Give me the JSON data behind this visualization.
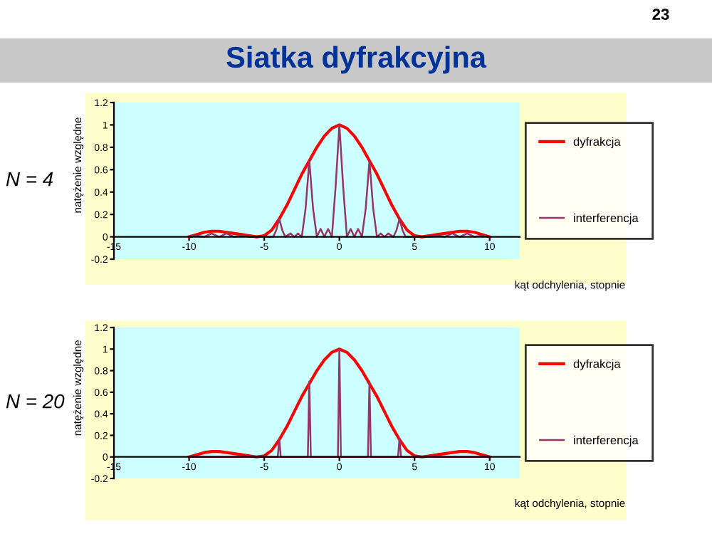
{
  "chart_data": [
    {
      "type": "line",
      "title": "Siatka dyfrakcyjna",
      "annotations": [
        "N = 4",
        "23"
      ],
      "xlabel": "kąt odchylenia, stopnie",
      "ylabel": "natężenie względne",
      "xlim": [
        -15,
        12
      ],
      "ylim": [
        -0.2,
        1.2
      ],
      "xticks": [
        -15,
        -10,
        -5,
        0,
        5,
        10
      ],
      "yticks": [
        -0.2,
        0,
        0.2,
        0.4,
        0.6,
        0.8,
        1,
        1.2
      ],
      "legend": "right",
      "marker": "none",
      "line_style": "solid",
      "series": [
        {
          "name": "dyfrakcja",
          "color": "#ff0000",
          "x": [
            -10,
            -9.5,
            -9,
            -8.5,
            -8,
            -7.5,
            -7,
            -6.5,
            -6,
            -5.5,
            -5,
            -4.5,
            -4,
            -3.5,
            -3,
            -2.5,
            -2,
            -1.5,
            -1,
            -0.5,
            0,
            0.5,
            1,
            1.5,
            2,
            2.5,
            3,
            3.5,
            4,
            4.5,
            5,
            5.5,
            6,
            6.5,
            7,
            7.5,
            8,
            8.5,
            9,
            9.5,
            10
          ],
          "values": [
            0,
            0.02,
            0.04,
            0.05,
            0.05,
            0.04,
            0.03,
            0.02,
            0.01,
            0,
            0.01,
            0.06,
            0.16,
            0.28,
            0.42,
            0.56,
            0.68,
            0.8,
            0.9,
            0.97,
            1,
            0.97,
            0.9,
            0.8,
            0.68,
            0.56,
            0.42,
            0.28,
            0.16,
            0.06,
            0.01,
            0,
            0.01,
            0.02,
            0.03,
            0.04,
            0.05,
            0.05,
            0.04,
            0.02,
            0
          ]
        },
        {
          "name": "interferencja",
          "color": "#993366",
          "x": [
            -10,
            -9.5,
            -9,
            -8.5,
            -8,
            -7.5,
            -7,
            -6.5,
            -6,
            -5,
            -4.4,
            -4.2,
            -4,
            -3.8,
            -3.6,
            -3.25,
            -3,
            -2.75,
            -2.5,
            -2.25,
            -2,
            -1.75,
            -1.5,
            -1.25,
            -1,
            -0.75,
            -0.5,
            -0.25,
            0,
            0.25,
            0.5,
            0.75,
            1,
            1.25,
            1.5,
            1.75,
            2,
            2.25,
            2.5,
            2.75,
            3,
            3.25,
            3.6,
            3.8,
            4,
            4.2,
            4.4,
            5,
            6,
            6.5,
            7,
            7.5,
            8,
            8.5,
            9,
            9.5,
            10
          ],
          "values": [
            0,
            0.01,
            0,
            0.03,
            0,
            0.03,
            0,
            0.01,
            0,
            0,
            0,
            0.06,
            0.16,
            0.06,
            0,
            0.03,
            0,
            0.03,
            0,
            0.25,
            0.68,
            0.25,
            0,
            0.07,
            0,
            0.07,
            0,
            0.45,
            1,
            0.45,
            0,
            0.07,
            0,
            0.07,
            0,
            0.25,
            0.68,
            0.25,
            0,
            0.03,
            0,
            0.03,
            0,
            0.06,
            0.16,
            0.06,
            0,
            0,
            0,
            0.01,
            0,
            0.03,
            0,
            0.03,
            0,
            0.01,
            0
          ]
        }
      ]
    },
    {
      "type": "line",
      "annotations": [
        "N = 20"
      ],
      "xlabel": "kąt odchylenia, stopnie",
      "ylabel": "natężenie względne",
      "xlim": [
        -15,
        12
      ],
      "ylim": [
        -0.2,
        1.2
      ],
      "xticks": [
        -15,
        -10,
        -5,
        0,
        5,
        10
      ],
      "yticks": [
        -0.2,
        0,
        0.2,
        0.4,
        0.6,
        0.8,
        1,
        1.2
      ],
      "legend": "right",
      "marker": "none",
      "line_style": "solid",
      "series": [
        {
          "name": "dyfrakcja",
          "color": "#ff0000",
          "x": [
            -10,
            -9.5,
            -9,
            -8.5,
            -8,
            -7.5,
            -7,
            -6.5,
            -6,
            -5.5,
            -5,
            -4.5,
            -4,
            -3.5,
            -3,
            -2.5,
            -2,
            -1.5,
            -1,
            -0.5,
            0,
            0.5,
            1,
            1.5,
            2,
            2.5,
            3,
            3.5,
            4,
            4.5,
            5,
            5.5,
            6,
            6.5,
            7,
            7.5,
            8,
            8.5,
            9,
            9.5,
            10
          ],
          "values": [
            0,
            0.02,
            0.04,
            0.05,
            0.05,
            0.04,
            0.03,
            0.02,
            0.01,
            0,
            0.01,
            0.06,
            0.16,
            0.28,
            0.42,
            0.56,
            0.68,
            0.8,
            0.9,
            0.97,
            1,
            0.97,
            0.9,
            0.8,
            0.68,
            0.56,
            0.42,
            0.28,
            0.16,
            0.06,
            0.01,
            0,
            0.01,
            0.02,
            0.03,
            0.04,
            0.05,
            0.05,
            0.04,
            0.02,
            0
          ]
        },
        {
          "name": "interferencja",
          "color": "#993366",
          "x": [
            -10,
            -4.1,
            -4,
            -3.9,
            -2.1,
            -2,
            -1.9,
            -0.1,
            0,
            0.1,
            1.9,
            2,
            2.1,
            3.9,
            4,
            4.1,
            10
          ],
          "values": [
            0,
            0,
            0.17,
            0,
            0,
            0.7,
            0,
            0,
            1,
            0,
            0,
            0.7,
            0,
            0,
            0.17,
            0,
            0
          ]
        }
      ]
    }
  ]
}
